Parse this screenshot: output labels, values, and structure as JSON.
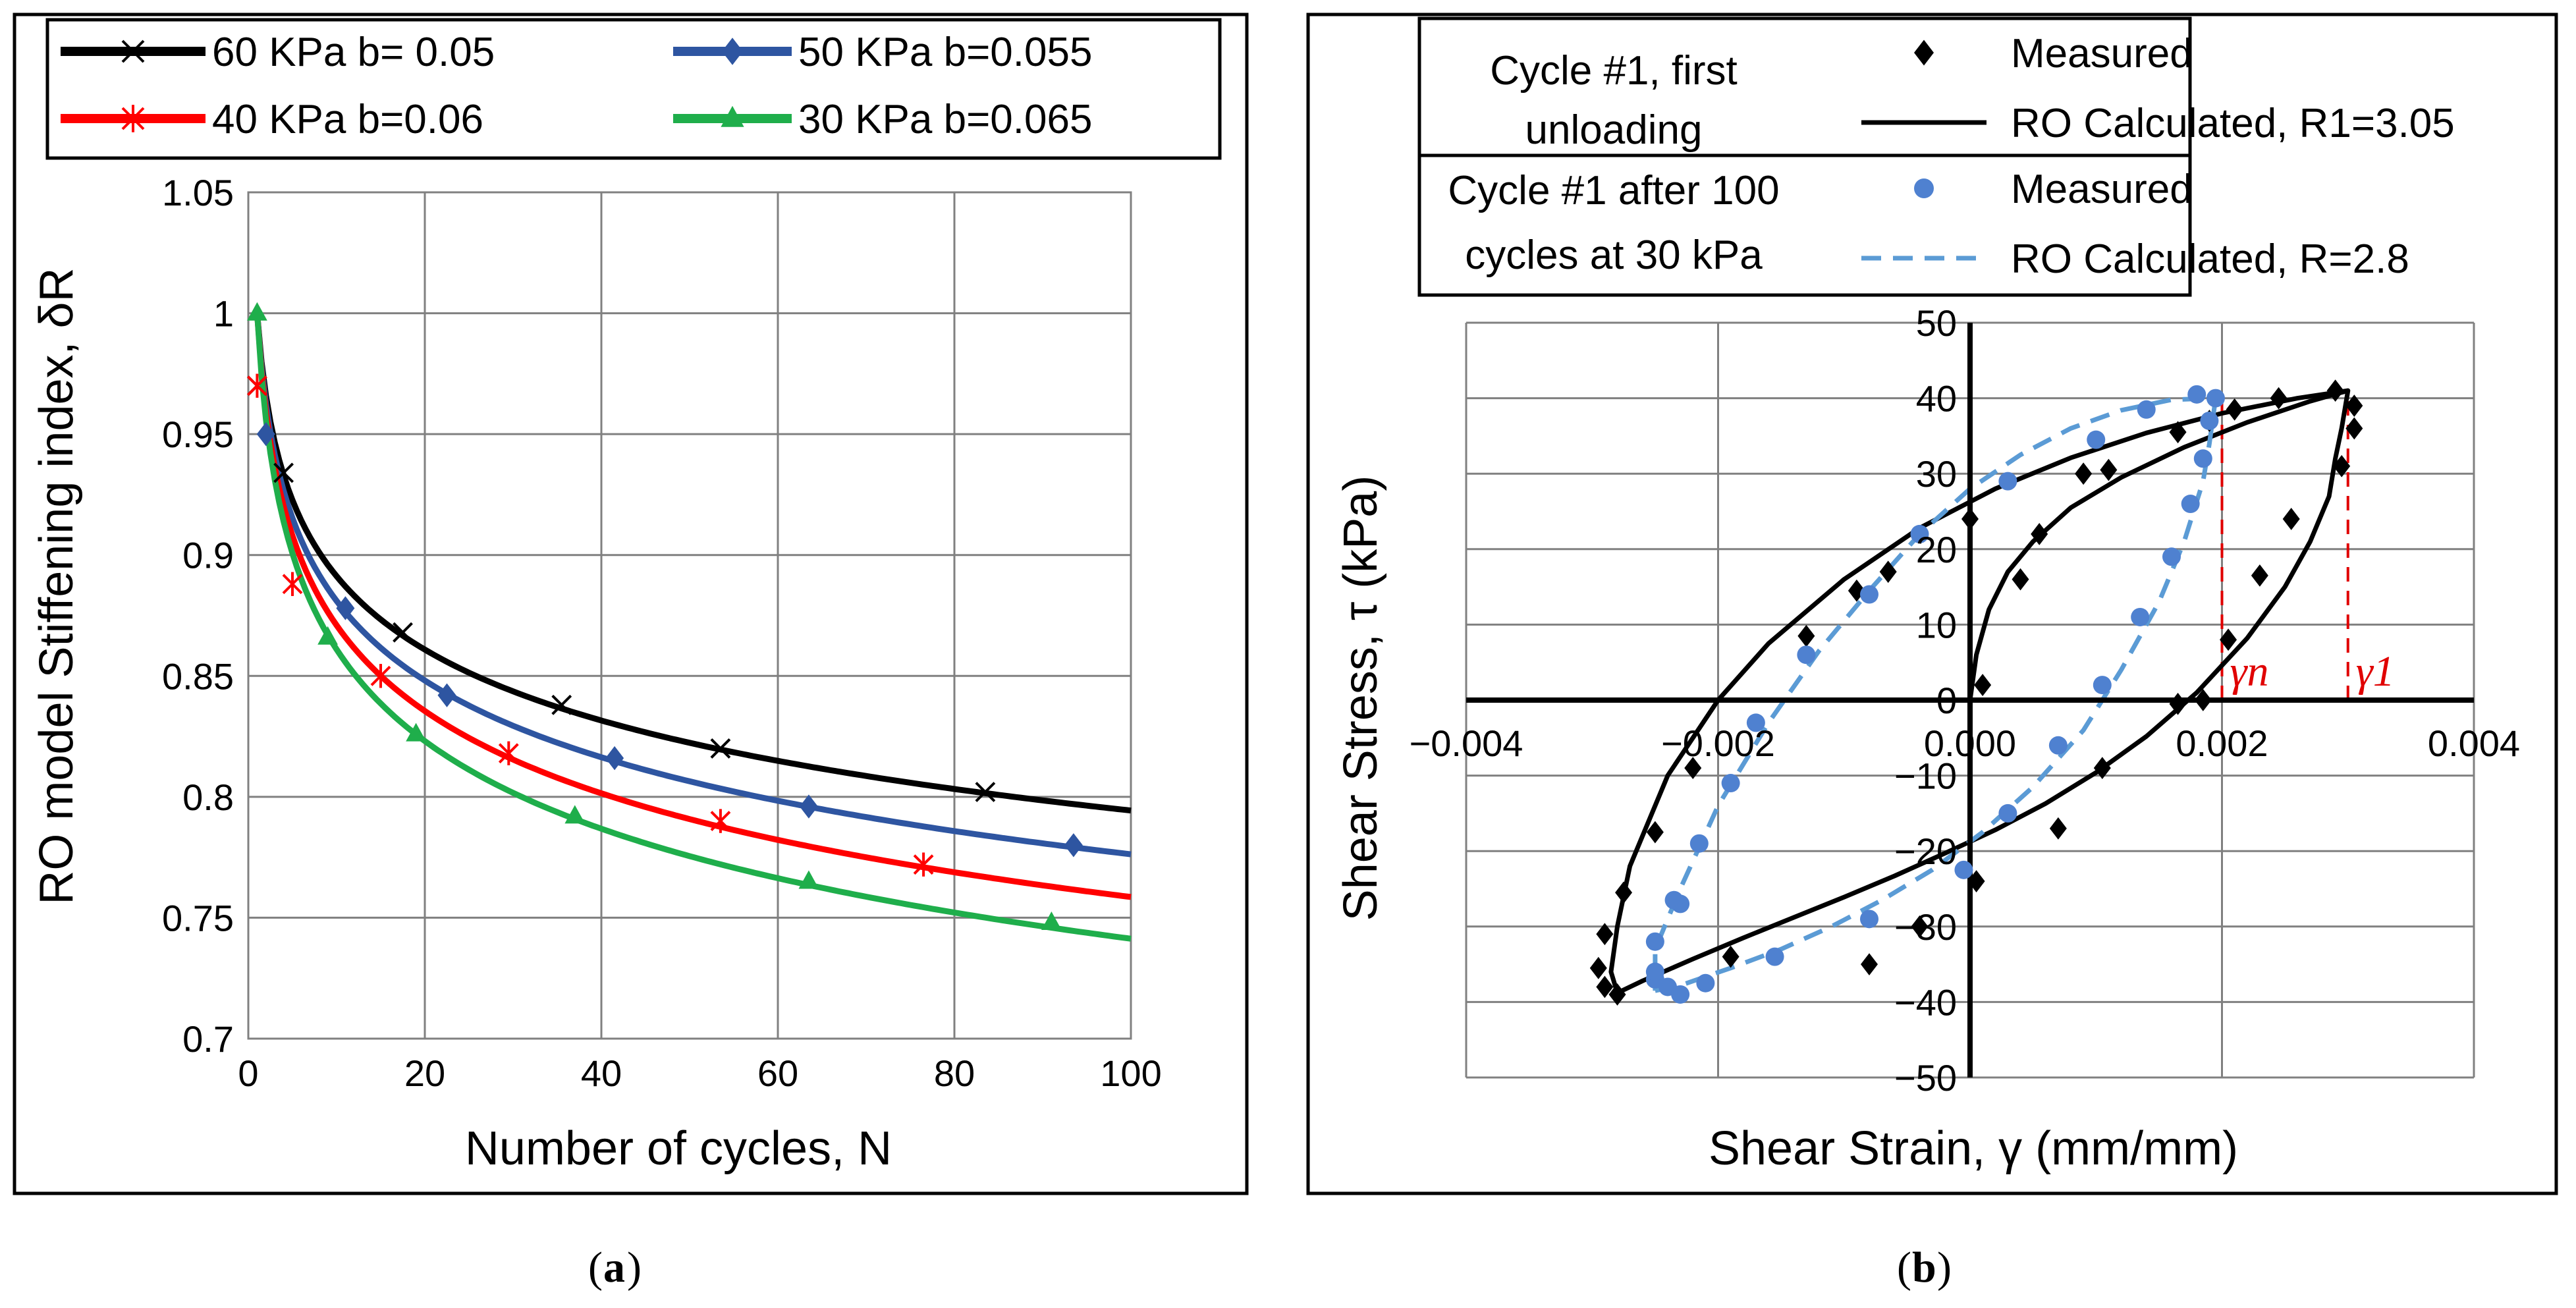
{
  "colors": {
    "s60": "#000000",
    "s50": "#2e55a1",
    "s40": "#ff0000",
    "s30": "#1fae4b",
    "measured1": "#000000",
    "measured2": "#4f81d0",
    "ro2": "#5b9bd5",
    "annotation": "#e00000"
  },
  "captions": {
    "a": "a",
    "b": "b"
  },
  "chart_data": [
    {
      "id": "a",
      "type": "line",
      "title": "",
      "xlabel": "Number of cycles, N",
      "ylabel": "RO model Stiffening index, δR",
      "xlim": [
        0,
        100
      ],
      "ylim": [
        0.7,
        1.05
      ],
      "xticks": [
        0,
        20,
        40,
        60,
        80,
        100
      ],
      "xtick_labels": [
        "0",
        "20",
        "40",
        "60",
        "80",
        "100"
      ],
      "yticks": [
        0.7,
        0.75,
        0.8,
        0.85,
        0.9,
        0.95,
        1.0,
        1.05
      ],
      "ytick_labels": [
        "0.7",
        "0.75",
        "0.8",
        "0.85",
        "0.9",
        "0.95",
        "1",
        "1.05"
      ],
      "grid": true,
      "legend_position": "top",
      "series": [
        {
          "name": "60 KPa b= 0.05",
          "b": 0.05,
          "color_key": "s60",
          "marker": "x",
          "marker_x": [
            1,
            4,
            17.5,
            35.5,
            53.5,
            83.5
          ],
          "marker_y": [
            0.97,
            0.934,
            0.868,
            0.838,
            0.82,
            0.802
          ]
        },
        {
          "name": "50 KPa b=0.055",
          "b": 0.055,
          "color_key": "s50",
          "marker": "diamond",
          "marker_x": [
            2,
            11,
            22.5,
            41.5,
            63.5,
            93.5
          ],
          "marker_y": [
            0.95,
            0.878,
            0.842,
            0.816,
            0.796,
            0.78
          ]
        },
        {
          "name": "40 KPa b=0.06",
          "b": 0.06,
          "color_key": "s40",
          "marker": "asterisk",
          "marker_x": [
            1,
            5,
            15,
            29.5,
            53.5,
            76.5
          ],
          "marker_y": [
            0.97,
            0.888,
            0.85,
            0.818,
            0.79,
            0.772
          ]
        },
        {
          "name": "30 KPa b=0.065",
          "b": 0.065,
          "color_key": "s30",
          "marker": "triangle",
          "marker_x": [
            1,
            9,
            19,
            37,
            63.5,
            91
          ],
          "marker_y": [
            1.0,
            0.866,
            0.826,
            0.792,
            0.765,
            0.748
          ]
        }
      ]
    },
    {
      "id": "b",
      "type": "scatter",
      "title": "",
      "xlabel": "Shear Strain, γ (mm/mm)",
      "ylabel": "Shear Stress, τ (kPa)",
      "xlim": [
        -0.004,
        0.004
      ],
      "ylim": [
        -50,
        50
      ],
      "xticks": [
        -0.004,
        -0.002,
        0.0,
        0.002,
        0.004
      ],
      "xtick_labels": [
        "−0.004",
        "−0.002",
        "0.000",
        "0.002",
        "0.004"
      ],
      "yticks": [
        -50,
        -40,
        -30,
        -20,
        -10,
        0,
        10,
        20,
        30,
        40,
        50
      ],
      "ytick_labels": [
        "−50",
        "−40",
        "−30",
        "−20",
        "−10",
        "0",
        "10",
        "20",
        "30",
        "40",
        "50"
      ],
      "grid": true,
      "legend": {
        "group1_label_line1": "Cycle #1, first",
        "group1_label_line2": "unloading",
        "group2_label_line1": "Cycle #1 after 100",
        "group2_label_line2": "cycles at 30 kPa",
        "measured_label_1": "Measured",
        "ro_label_1": "RO Calculated, R1=3.05",
        "measured_label_2": "Measured",
        "ro_label_2": "RO Calculated, R=2.8"
      },
      "annotations": {
        "gamma_n": "γn",
        "gamma_1": "γ1",
        "gamma_n_x": 0.002,
        "gamma_1_x": 0.003
      },
      "series": [
        {
          "name": "Measured",
          "group": "Cycle #1, first unloading",
          "color_key": "measured1",
          "marker": "diamond",
          "points": [
            [
              0.0001,
              2
            ],
            [
              0.0004,
              16
            ],
            [
              0.00055,
              22
            ],
            [
              0.0009,
              30
            ],
            [
              0.0011,
              30.5
            ],
            [
              0.00165,
              35.5
            ],
            [
              0.0019,
              37
            ],
            [
              0.0021,
              38.5
            ],
            [
              0.00245,
              40
            ],
            [
              0.0029,
              41
            ],
            [
              0.00305,
              39
            ],
            [
              0.00305,
              36
            ],
            [
              0.00295,
              31
            ],
            [
              0.00255,
              24
            ],
            [
              0.0023,
              16.5
            ],
            [
              0.00205,
              8
            ],
            [
              0.00165,
              -0.5
            ],
            [
              0.00185,
              0
            ],
            [
              0.00105,
              -9
            ],
            [
              0.0007,
              -17
            ],
            [
              5e-05,
              -24
            ],
            [
              -0.0004,
              -30
            ],
            [
              -0.0008,
              -35
            ],
            [
              -0.0019,
              -34
            ],
            [
              -0.0028,
              -39
            ],
            [
              -0.0029,
              -38
            ],
            [
              -0.00295,
              -35.5
            ],
            [
              -0.0029,
              -31
            ],
            [
              -0.00275,
              -25.5
            ],
            [
              -0.0025,
              -17.5
            ],
            [
              -0.0022,
              -9
            ],
            [
              -0.0013,
              8.5
            ],
            [
              -0.0009,
              14.5
            ],
            [
              -0.00065,
              17
            ],
            [
              0,
              24
            ]
          ]
        },
        {
          "name": "RO Calculated, R1=3.05",
          "group": "Cycle #1, first unloading",
          "color_key": "measured1",
          "marker": "line",
          "points": [
            [
              -0.0028,
              -38.8
            ],
            [
              -0.0026,
              -37.2
            ],
            [
              -0.0022,
              -34.3
            ],
            [
              -0.0018,
              -31.5
            ],
            [
              -0.0014,
              -28.8
            ],
            [
              -0.001,
              -26.1
            ],
            [
              -0.0006,
              -23.3
            ],
            [
              -0.0002,
              -20.3
            ],
            [
              0.0002,
              -17.2
            ],
            [
              0.0006,
              -13.7
            ],
            [
              0.001,
              -9.6
            ],
            [
              0.0014,
              -4.8
            ],
            [
              0.0018,
              1.0
            ],
            [
              0.0022,
              8.2
            ],
            [
              0.0025,
              15.0
            ],
            [
              0.0027,
              21.0
            ],
            [
              0.00285,
              27.0
            ],
            [
              0.0029,
              32.0
            ],
            [
              0.00295,
              36.0
            ],
            [
              0.003,
              41.0
            ],
            [
              0.0026,
              40.0
            ],
            [
              0.002,
              38.0
            ],
            [
              0.0014,
              35.4
            ],
            [
              0.0008,
              32.1
            ],
            [
              0.0002,
              28.0
            ],
            [
              -0.0004,
              22.8
            ],
            [
              -0.001,
              16.0
            ],
            [
              -0.0016,
              7.5
            ],
            [
              -0.002,
              0.0
            ],
            [
              -0.0024,
              -10.0
            ],
            [
              -0.0027,
              -22.0
            ],
            [
              -0.0028,
              -30.0
            ],
            [
              -0.00285,
              -36.0
            ],
            [
              -0.0028,
              -38.8
            ]
          ],
          "initial_points": [
            [
              0,
              0
            ],
            [
              5e-05,
              6
            ],
            [
              0.00015,
              12
            ],
            [
              0.0003,
              17
            ],
            [
              0.0005,
              21
            ],
            [
              0.0008,
              25.5
            ],
            [
              0.0012,
              29.5
            ],
            [
              0.0017,
              33.5
            ],
            [
              0.0022,
              36.8
            ],
            [
              0.0027,
              39.6
            ],
            [
              0.003,
              41.0
            ]
          ]
        },
        {
          "name": "Measured",
          "group": "Cycle #1 after 100 cycles at 30 kPa",
          "color_key": "measured2",
          "marker": "circle",
          "points": [
            [
              -0.0024,
              -38
            ],
            [
              -0.0025,
              -37
            ],
            [
              -0.0023,
              -39
            ],
            [
              -0.0021,
              -37.5
            ],
            [
              -0.0023,
              -27
            ],
            [
              -0.0025,
              -32
            ],
            [
              -0.00155,
              -34
            ],
            [
              -0.0008,
              -29
            ],
            [
              -5e-05,
              -22.5
            ],
            [
              0.0003,
              -15
            ],
            [
              0.0007,
              -6
            ],
            [
              0.00105,
              2
            ],
            [
              0.00135,
              11
            ],
            [
              0.0016,
              19
            ],
            [
              0.00175,
              26
            ],
            [
              0.00185,
              32
            ],
            [
              0.0019,
              37
            ],
            [
              0.00195,
              40
            ],
            [
              0.0018,
              40.5
            ],
            [
              0.0014,
              38.5
            ],
            [
              0.001,
              34.5
            ],
            [
              0.0003,
              29
            ],
            [
              -0.0004,
              22
            ],
            [
              -0.0008,
              14
            ],
            [
              -0.0013,
              6
            ],
            [
              -0.0017,
              -3
            ],
            [
              -0.0019,
              -11
            ],
            [
              -0.00215,
              -19
            ],
            [
              -0.00235,
              -26.5
            ],
            [
              -0.0025,
              -36
            ]
          ]
        },
        {
          "name": "RO Calculated, R=2.8",
          "group": "Cycle #1 after 100 cycles at 30 kPa",
          "color_key": "ro2",
          "marker": "dashed-line",
          "points": [
            [
              -0.0025,
              -38.5
            ],
            [
              -0.0023,
              -37.8
            ],
            [
              -0.0019,
              -35.5
            ],
            [
              -0.0015,
              -33.0
            ],
            [
              -0.0011,
              -30.0
            ],
            [
              -0.0007,
              -26.5
            ],
            [
              -0.0003,
              -22.5
            ],
            [
              0.0001,
              -17.5
            ],
            [
              0.0005,
              -11.5
            ],
            [
              0.0009,
              -4.0
            ],
            [
              0.0012,
              4.0
            ],
            [
              0.0015,
              13.0
            ],
            [
              0.0017,
              21.0
            ],
            [
              0.00185,
              29.0
            ],
            [
              0.0019,
              34.0
            ],
            [
              0.00195,
              40.0
            ],
            [
              0.0016,
              39.8
            ],
            [
              0.0012,
              38.4
            ],
            [
              0.0008,
              36.0
            ],
            [
              0.0004,
              32.5
            ],
            [
              0.0,
              28.0
            ],
            [
              -0.0004,
              22.0
            ],
            [
              -0.0008,
              14.5
            ],
            [
              -0.0012,
              6.5
            ],
            [
              -0.0016,
              -3.0
            ],
            [
              -0.002,
              -14.0
            ],
            [
              -0.0023,
              -25.0
            ],
            [
              -0.0025,
              -33.0
            ],
            [
              -0.0025,
              -38.5
            ]
          ]
        }
      ]
    }
  ]
}
